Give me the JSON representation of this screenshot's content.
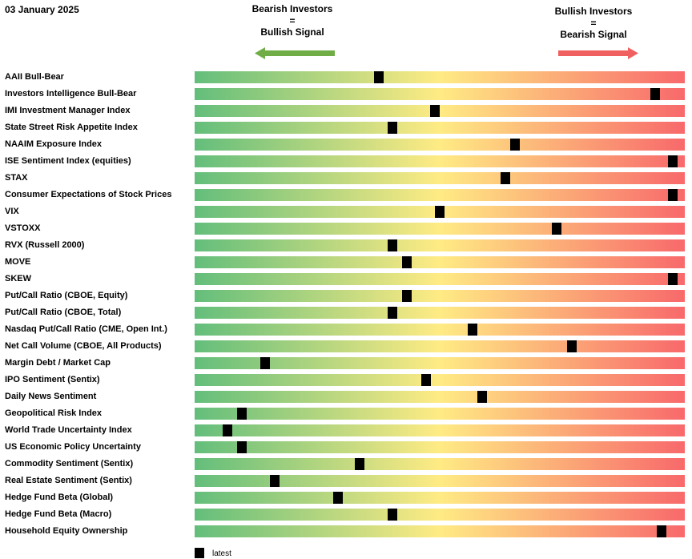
{
  "date": "03 January 2025",
  "signals": {
    "left": [
      "Bearish Investors",
      "=",
      "Bullish Signal"
    ],
    "right": [
      "Bullish Investors",
      "=",
      "Bearish Signal"
    ]
  },
  "colors": {
    "green": "#63be7b",
    "yellow": "#ffeb84",
    "red": "#f8696b",
    "arrow_left": "#70ad47",
    "arrow_right": "#f06060",
    "marker": "#000000"
  },
  "legend": {
    "label": "latest"
  },
  "chart_data": {
    "type": "bar",
    "scale": "percentile position, 0 = left (bullish signal), 1 = right (bearish signal)",
    "categories": [
      "AAII Bull-Bear",
      "Investors Intelligence Bull-Bear",
      "IMI Investment Manager Index",
      "State Street Risk Appetite Index",
      "NAAIM Exposure Index",
      "ISE Sentiment Index (equities)",
      "STAX",
      "Consumer Expectations of Stock Prices",
      "VIX",
      "VSTOXX",
      "RVX (Russell 2000)",
      "MOVE",
      "SKEW",
      "Put/Call Ratio (CBOE, Equity)",
      "Put/Call Ratio (CBOE, Total)",
      "Nasdaq Put/Call Ratio (CME, Open Int.)",
      "Net Call Volume (CBOE, All Products)",
      "Margin Debt / Market Cap",
      "IPO Sentiment (Sentix)",
      "Daily News Sentiment",
      "Geopolitical Risk Index",
      "World Trade Uncertainty Index",
      "US Economic Policy Uncertainty",
      "Commodity Sentiment (Sentix)",
      "Real Estate Sentiment (Sentix)",
      "Hedge Fund Beta (Global)",
      "Hedge Fund Beta (Macro)",
      "Household Equity Ownership"
    ],
    "series": [
      {
        "name": "latest",
        "values": [
          0.373,
          0.948,
          0.49,
          0.402,
          0.657,
          0.985,
          0.637,
          0.985,
          0.5,
          0.743,
          0.402,
          0.431,
          0.985,
          0.431,
          0.402,
          0.569,
          0.775,
          0.137,
          0.471,
          0.588,
          0.088,
          0.059,
          0.088,
          0.333,
          0.157,
          0.289,
          0.402,
          0.961
        ]
      }
    ],
    "xlim": [
      0,
      1
    ],
    "grid": false,
    "legend": "bottom-left"
  }
}
